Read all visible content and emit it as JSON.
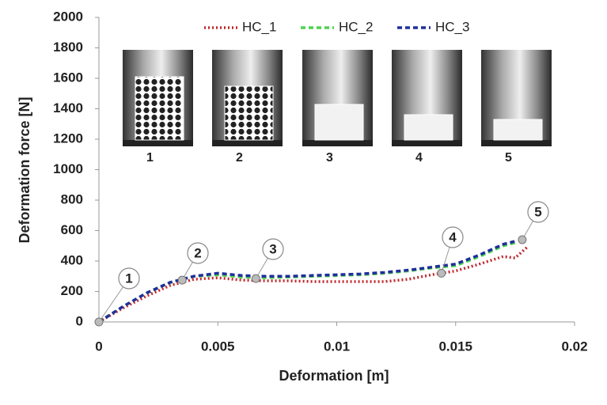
{
  "chart_data": {
    "type": "line",
    "xlabel": "Deformation [m]",
    "ylabel": "Deformation force [N]",
    "x": [
      0,
      0.001,
      0.002,
      0.003,
      0.004,
      0.005,
      0.006,
      0.007,
      0.008,
      0.009,
      0.01,
      0.011,
      0.012,
      0.013,
      0.014,
      0.015,
      0.016,
      0.017,
      0.0175,
      0.018
    ],
    "series": [
      {
        "name": "HC_1",
        "color": "#c0282d",
        "style": "dotted",
        "values": [
          0,
          90,
          170,
          240,
          280,
          290,
          275,
          270,
          270,
          265,
          265,
          265,
          265,
          280,
          310,
          335,
          380,
          430,
          420,
          490
        ]
      },
      {
        "name": "HC_2",
        "color": "#4cd44c",
        "style": "dashed",
        "values": [
          0,
          100,
          190,
          260,
          300,
          310,
          295,
          290,
          295,
          300,
          305,
          310,
          320,
          335,
          355,
          370,
          430,
          500,
          520,
          null
        ]
      },
      {
        "name": "HC_3",
        "color": "#1f2f9a",
        "style": "dashed",
        "values": [
          0,
          100,
          190,
          260,
          300,
          320,
          305,
          300,
          300,
          305,
          310,
          315,
          325,
          340,
          360,
          380,
          440,
          510,
          530,
          null
        ]
      }
    ],
    "annotations": [
      {
        "label": "1",
        "x": 0,
        "y": 0
      },
      {
        "label": "2",
        "x": 0.0035,
        "y": 275
      },
      {
        "label": "3",
        "x": 0.0066,
        "y": 285
      },
      {
        "label": "4",
        "x": 0.0144,
        "y": 320
      },
      {
        "label": "5",
        "x": 0.0178,
        "y": 540
      }
    ],
    "inset_labels": [
      "1",
      "2",
      "3",
      "4",
      "5"
    ],
    "xlim": [
      0,
      0.02
    ],
    "xticks": [
      0,
      0.005,
      0.01,
      0.015,
      0.02
    ],
    "ylim": [
      0,
      2000
    ],
    "yticks": [
      0,
      200,
      400,
      600,
      800,
      1000,
      1200,
      1400,
      1600,
      1800,
      2000
    ],
    "legend": "top"
  }
}
